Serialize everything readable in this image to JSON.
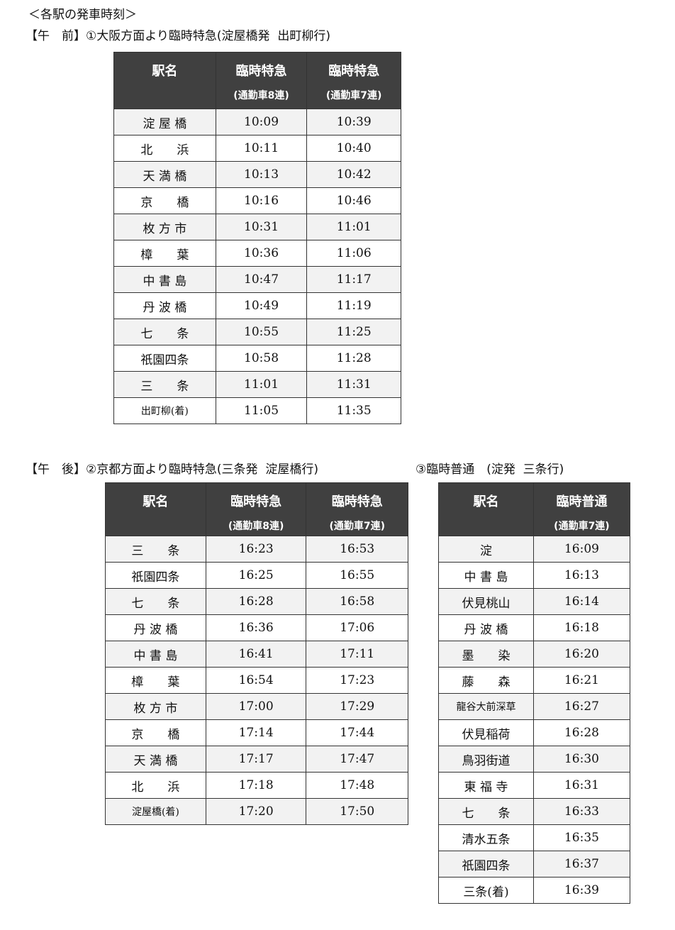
{
  "heading": "＜各駅の発車時刻＞",
  "am": {
    "title": "【午　前】①大阪方面より臨時特急(淀屋橋発  出町柳行)",
    "headers": [
      {
        "t": "駅名",
        "s": ""
      },
      {
        "t": "臨時特急",
        "s": "(通勤車8連)"
      },
      {
        "t": "臨時特急",
        "s": "(通勤車7連)"
      }
    ],
    "rows": [
      [
        "淀 屋 橋",
        "10:09",
        "10:39"
      ],
      [
        "北　　浜",
        "10:11",
        "10:40"
      ],
      [
        "天 満 橋",
        "10:13",
        "10:42"
      ],
      [
        "京　　橋",
        "10:16",
        "10:46"
      ],
      [
        "枚 方 市",
        "10:31",
        "11:01"
      ],
      [
        "樟　　葉",
        "10:36",
        "11:06"
      ],
      [
        "中 書 島",
        "10:47",
        "11:17"
      ],
      [
        "丹 波 橋",
        "10:49",
        "11:19"
      ],
      [
        "七　　条",
        "10:55",
        "11:25"
      ],
      [
        "祇園四条",
        "10:58",
        "11:28"
      ],
      [
        "三　　条",
        "11:01",
        "11:31"
      ],
      [
        "出町柳(着)",
        "11:05",
        "11:35"
      ]
    ]
  },
  "pm": {
    "title": "【午　後】②京都方面より臨時特急(三条発  淀屋橋行)",
    "headers": [
      {
        "t": "駅名",
        "s": ""
      },
      {
        "t": "臨時特急",
        "s": "(通勤車8連)"
      },
      {
        "t": "臨時特急",
        "s": "(通勤車7連)"
      }
    ],
    "rows": [
      [
        "三　　条",
        "16:23",
        "16:53"
      ],
      [
        "祇園四条",
        "16:25",
        "16:55"
      ],
      [
        "七　　条",
        "16:28",
        "16:58"
      ],
      [
        "丹 波 橋",
        "16:36",
        "17:06"
      ],
      [
        "中 書 島",
        "16:41",
        "17:11"
      ],
      [
        "樟　　葉",
        "16:54",
        "17:23"
      ],
      [
        "枚 方 市",
        "17:00",
        "17:29"
      ],
      [
        "京　　橋",
        "17:14",
        "17:44"
      ],
      [
        "天 満 橋",
        "17:17",
        "17:47"
      ],
      [
        "北　　浜",
        "17:18",
        "17:48"
      ],
      [
        "淀屋橋(着)",
        "17:20",
        "17:50"
      ]
    ]
  },
  "local": {
    "title": "③臨時普通　(淀発  三条行)",
    "headers": [
      {
        "t": "駅名",
        "s": ""
      },
      {
        "t": "臨時普通",
        "s": "(通勤車7連)"
      }
    ],
    "rows": [
      [
        "淀",
        "16:09"
      ],
      [
        "中 書 島",
        "16:13"
      ],
      [
        "伏見桃山",
        "16:14"
      ],
      [
        "丹 波 橋",
        "16:18"
      ],
      [
        "墨　　染",
        "16:20"
      ],
      [
        "藤　　森",
        "16:21"
      ],
      [
        "龍谷大前深草",
        "16:27"
      ],
      [
        "伏見稲荷",
        "16:28"
      ],
      [
        "鳥羽街道",
        "16:30"
      ],
      [
        "東 福 寺",
        "16:31"
      ],
      [
        "七　　条",
        "16:33"
      ],
      [
        "清水五条",
        "16:35"
      ],
      [
        "祇園四条",
        "16:37"
      ],
      [
        "三条(着)",
        "16:39"
      ]
    ]
  }
}
